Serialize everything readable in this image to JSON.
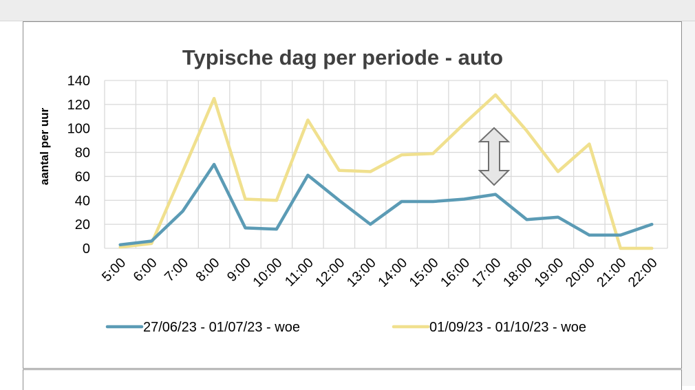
{
  "chart_data": {
    "type": "line",
    "title": "Typische dag per periode - auto",
    "xlabel": "",
    "ylabel": "aantal per uur",
    "categories": [
      "5:00",
      "6:00",
      "7:00",
      "8:00",
      "9:00",
      "10:00",
      "11:00",
      "12:00",
      "13:00",
      "14:00",
      "15:00",
      "16:00",
      "17:00",
      "18:00",
      "19:00",
      "20:00",
      "21:00",
      "22:00"
    ],
    "ylim": [
      0,
      140
    ],
    "yticks": [
      0,
      20,
      40,
      60,
      80,
      100,
      120,
      140
    ],
    "grid": true,
    "legend_position": "bottom",
    "series": [
      {
        "name": "27/06/23 - 01/07/23 - woe",
        "color": "#5b9bb5",
        "values": [
          3,
          6,
          31,
          70,
          17,
          16,
          61,
          40,
          20,
          39,
          39,
          41,
          45,
          24,
          26,
          11,
          11,
          20
        ]
      },
      {
        "name": "01/09/23 - 01/10/23 - woe",
        "color": "#f0e08e",
        "values": [
          1,
          4,
          64,
          125,
          41,
          40,
          107,
          65,
          64,
          78,
          79,
          104,
          128,
          98,
          64,
          87,
          0,
          0
        ]
      }
    ],
    "annotations": [
      {
        "type": "double-arrow",
        "icon": "double-headed-arrow-icon",
        "fill": "#e6e6e6",
        "stroke": "#707070"
      }
    ]
  }
}
